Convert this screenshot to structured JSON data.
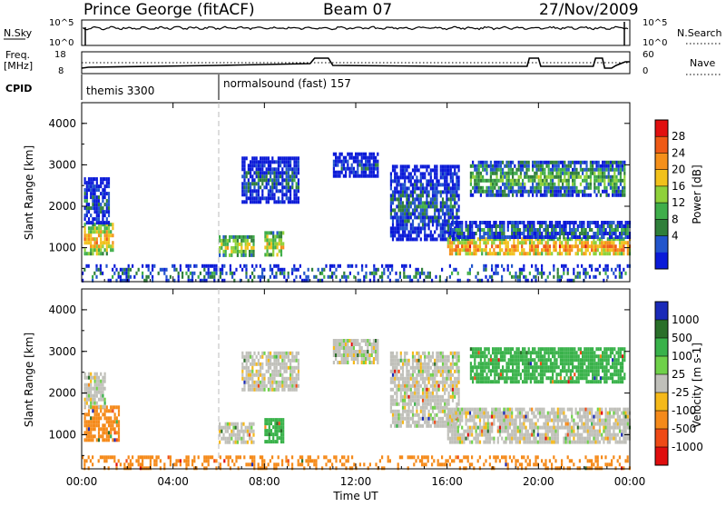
{
  "header": {
    "title": "Prince George (fitACF)",
    "beam": "Beam 07",
    "date": "27/Nov/2009"
  },
  "top_panels": {
    "nsky_label": "N.Sky",
    "nsky_ticks": [
      "10^5",
      "10^0"
    ],
    "nsearch_label": "N.Search",
    "nsearch_ticks_right": [
      "10^5",
      "10^0"
    ],
    "freq_label": "Freq.",
    "freq_unit": "[MHz]",
    "freq_ticks": [
      "18",
      "8"
    ],
    "nave_label": "Nave",
    "nave_ticks_right": [
      "60",
      "0"
    ],
    "cpid_label": "CPID",
    "cpid_segments": [
      {
        "name": "themis 3300",
        "start_h": 0
      },
      {
        "name": "normalsound (fast) 157",
        "start_h": 6
      }
    ]
  },
  "axes": {
    "ylabel": "Slant Range [km]",
    "yticks": [
      "4000",
      "3000",
      "2000",
      "1000"
    ],
    "xlabel": "Time UT",
    "xticks": [
      "00:00",
      "04:00",
      "08:00",
      "12:00",
      "16:00",
      "20:00",
      "00:00"
    ]
  },
  "power_colorbar": {
    "label": "Power [dB]",
    "ticks": [
      "28",
      "24",
      "20",
      "16",
      "12",
      "8",
      "4"
    ],
    "colors": [
      "#0a1ad8",
      "#2255cc",
      "#2f7f3a",
      "#3fae4a",
      "#8fd13a",
      "#f2c11b",
      "#f5901a",
      "#ef5a16",
      "#e11010"
    ]
  },
  "velocity_colorbar": {
    "label": "Velocity [m s-1]",
    "ticks": [
      "1000",
      "500",
      "100",
      "25",
      "-25",
      "-100",
      "-500",
      "-1000"
    ],
    "colors": [
      "#1a2ab8",
      "#2a6f2a",
      "#39b24a",
      "#6fd14a",
      "#c0c0ba",
      "#f5b91a",
      "#f58a1a",
      "#ef4a16",
      "#e00e0e"
    ]
  },
  "chart_data": {
    "type": "heatmap",
    "title": "Prince George (fitACF)",
    "xlabel": "Time UT",
    "ylabel": "Slant Range [km]",
    "x_range_hours": [
      0,
      24
    ],
    "ylim": [
      180,
      4500
    ],
    "series": [
      {
        "name": "Power [dB]",
        "regions": [
          {
            "t0": 0.1,
            "t1": 1.4,
            "r0": 850,
            "r1": 1600,
            "value": 22
          },
          {
            "t0": 0.1,
            "t1": 1.2,
            "r0": 1600,
            "r1": 2700,
            "value": 8
          },
          {
            "t0": 6.0,
            "t1": 7.5,
            "r0": 850,
            "r1": 1300,
            "value": 18
          },
          {
            "t0": 8.0,
            "t1": 8.8,
            "r0": 800,
            "r1": 1400,
            "value": 20
          },
          {
            "t0": 7.0,
            "t1": 9.5,
            "r0": 2100,
            "r1": 3200,
            "value": 8
          },
          {
            "t0": 11.0,
            "t1": 13.0,
            "r0": 2700,
            "r1": 3300,
            "value": 6
          },
          {
            "t0": 13.5,
            "t1": 16.5,
            "r0": 1200,
            "r1": 3000,
            "value": 8
          },
          {
            "t0": 16.0,
            "t1": 24.0,
            "r0": 850,
            "r1": 1250,
            "value": 24
          },
          {
            "t0": 16.0,
            "t1": 24.0,
            "r0": 1250,
            "r1": 1650,
            "value": 10
          },
          {
            "t0": 17.0,
            "t1": 23.8,
            "r0": 2300,
            "r1": 3100,
            "value": 14
          },
          {
            "t0": 0.0,
            "t1": 24.0,
            "r0": 180,
            "r1": 600,
            "value": 10
          }
        ]
      },
      {
        "name": "Velocity [m s-1]",
        "regions": [
          {
            "t0": 0.1,
            "t1": 1.6,
            "r0": 850,
            "r1": 1700,
            "value": -100
          },
          {
            "t0": 0.1,
            "t1": 1.0,
            "r0": 1700,
            "r1": 2500,
            "value": 0
          },
          {
            "t0": 6.0,
            "t1": 7.5,
            "r0": 850,
            "r1": 1300,
            "value": 0
          },
          {
            "t0": 8.0,
            "t1": 8.8,
            "r0": 800,
            "r1": 1400,
            "value": 100
          },
          {
            "t0": 7.0,
            "t1": 9.5,
            "r0": 2100,
            "r1": 3000,
            "value": 0
          },
          {
            "t0": 11.0,
            "t1": 13.0,
            "r0": 2700,
            "r1": 3300,
            "value": 0
          },
          {
            "t0": 13.5,
            "t1": 16.5,
            "r0": 1200,
            "r1": 3000,
            "value": 0
          },
          {
            "t0": 16.0,
            "t1": 24.0,
            "r0": 850,
            "r1": 1650,
            "value": 0
          },
          {
            "t0": 17.0,
            "t1": 23.8,
            "r0": 2300,
            "r1": 3100,
            "value": 100
          },
          {
            "t0": 0.0,
            "t1": 24.0,
            "r0": 180,
            "r1": 500,
            "value": -100
          }
        ]
      }
    ],
    "grid": false
  }
}
